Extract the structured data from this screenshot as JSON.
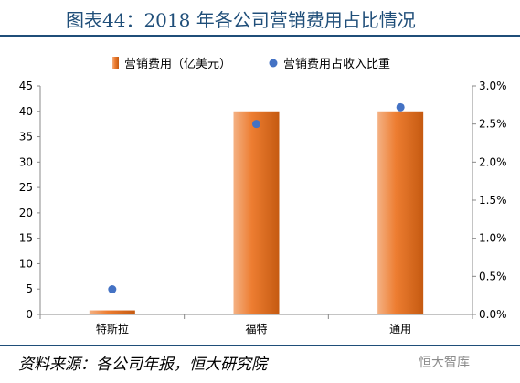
{
  "title": "图表44：2018 年各公司营销费用占比情况",
  "source": "资料来源：各公司年报，恒大研究院",
  "watermark": "恒大智库",
  "chart_data": {
    "type": "bar",
    "categories": [
      "特斯拉",
      "福特",
      "通用"
    ],
    "series": [
      {
        "name": "营销费用（亿美元）",
        "type": "bar",
        "axis": "left",
        "color": "#ed7d31",
        "values": [
          0.8,
          40.0,
          40.0
        ]
      },
      {
        "name": "营销费用占收入比重",
        "type": "scatter",
        "axis": "right",
        "color": "#4472c4",
        "values": [
          0.0033,
          0.025,
          0.0272
        ]
      }
    ],
    "y_left": {
      "min": 0,
      "max": 45,
      "ticks": [
        0,
        5,
        10,
        15,
        20,
        25,
        30,
        35,
        40,
        45
      ]
    },
    "y_right": {
      "min": 0,
      "max": 0.03,
      "ticks": [
        "0.0%",
        "0.5%",
        "1.0%",
        "1.5%",
        "2.0%",
        "2.5%",
        "3.0%"
      ]
    },
    "legend": "top"
  }
}
